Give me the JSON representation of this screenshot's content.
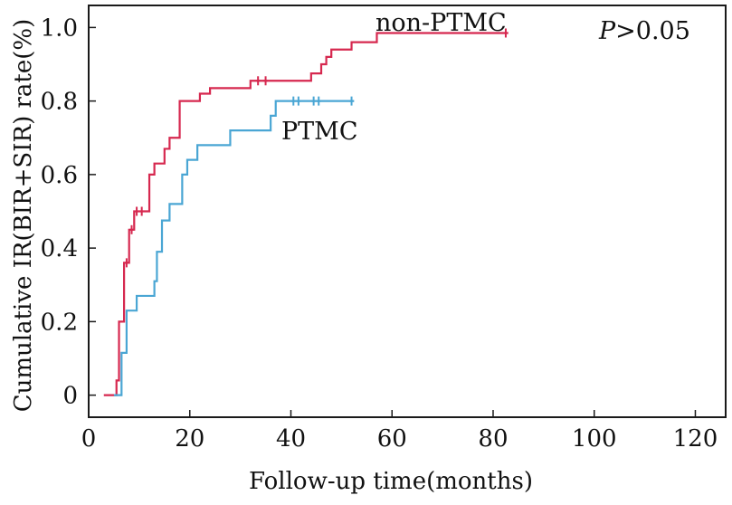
{
  "chart_data": {
    "type": "line",
    "step": true,
    "xlabel": "Follow-up time(months)",
    "ylabel": "Cumulative IR(BIR+SIR) rate(%)",
    "xlim": [
      0,
      126
    ],
    "ylim": [
      -0.06,
      1.06
    ],
    "xticks": [
      0,
      20,
      40,
      60,
      80,
      100,
      120
    ],
    "yticks": [
      0,
      0.2,
      0.4,
      0.6,
      0.8,
      1.0
    ],
    "xtick_labels": [
      "0",
      "20",
      "40",
      "60",
      "80",
      "100",
      "120"
    ],
    "ytick_labels": [
      "0",
      "0.2",
      "0.4",
      "0.6",
      "0.8",
      "1.0"
    ],
    "grid": false,
    "annotations": {
      "p_prefix": "P",
      "p_suffix": ">0.05"
    },
    "series": [
      {
        "name": "non-PTMC",
        "color": "#d6284f",
        "points": [
          [
            3,
            0
          ],
          [
            5.5,
            0.04
          ],
          [
            6,
            0.2
          ],
          [
            7,
            0.36
          ],
          [
            8,
            0.45
          ],
          [
            9,
            0.5
          ],
          [
            12,
            0.6
          ],
          [
            13,
            0.63
          ],
          [
            15,
            0.67
          ],
          [
            16,
            0.7
          ],
          [
            18,
            0.8
          ],
          [
            22,
            0.82
          ],
          [
            24,
            0.835
          ],
          [
            32,
            0.855
          ],
          [
            44,
            0.875
          ],
          [
            46,
            0.9
          ],
          [
            47,
            0.92
          ],
          [
            48,
            0.94
          ],
          [
            52,
            0.96
          ],
          [
            57,
            0.985
          ],
          [
            83,
            0.985
          ]
        ],
        "censored": [
          [
            7.5,
            0.36
          ],
          [
            8.5,
            0.45
          ],
          [
            9.5,
            0.5
          ],
          [
            10.5,
            0.5
          ],
          [
            33.5,
            0.855
          ],
          [
            35,
            0.855
          ],
          [
            82.5,
            0.985
          ]
        ]
      },
      {
        "name": "PTMC",
        "color": "#4aa6d4",
        "points": [
          [
            5,
            0
          ],
          [
            6.5,
            0.115
          ],
          [
            7.5,
            0.23
          ],
          [
            9.5,
            0.27
          ],
          [
            13,
            0.31
          ],
          [
            13.5,
            0.39
          ],
          [
            14.5,
            0.475
          ],
          [
            16,
            0.52
          ],
          [
            18.5,
            0.6
          ],
          [
            19.5,
            0.64
          ],
          [
            21.5,
            0.68
          ],
          [
            28,
            0.72
          ],
          [
            36,
            0.76
          ],
          [
            37,
            0.8
          ],
          [
            52.5,
            0.8
          ]
        ],
        "censored": [
          [
            40.5,
            0.8
          ],
          [
            41.5,
            0.8
          ],
          [
            44.5,
            0.8
          ],
          [
            45.5,
            0.8
          ],
          [
            52,
            0.8
          ]
        ]
      }
    ]
  }
}
